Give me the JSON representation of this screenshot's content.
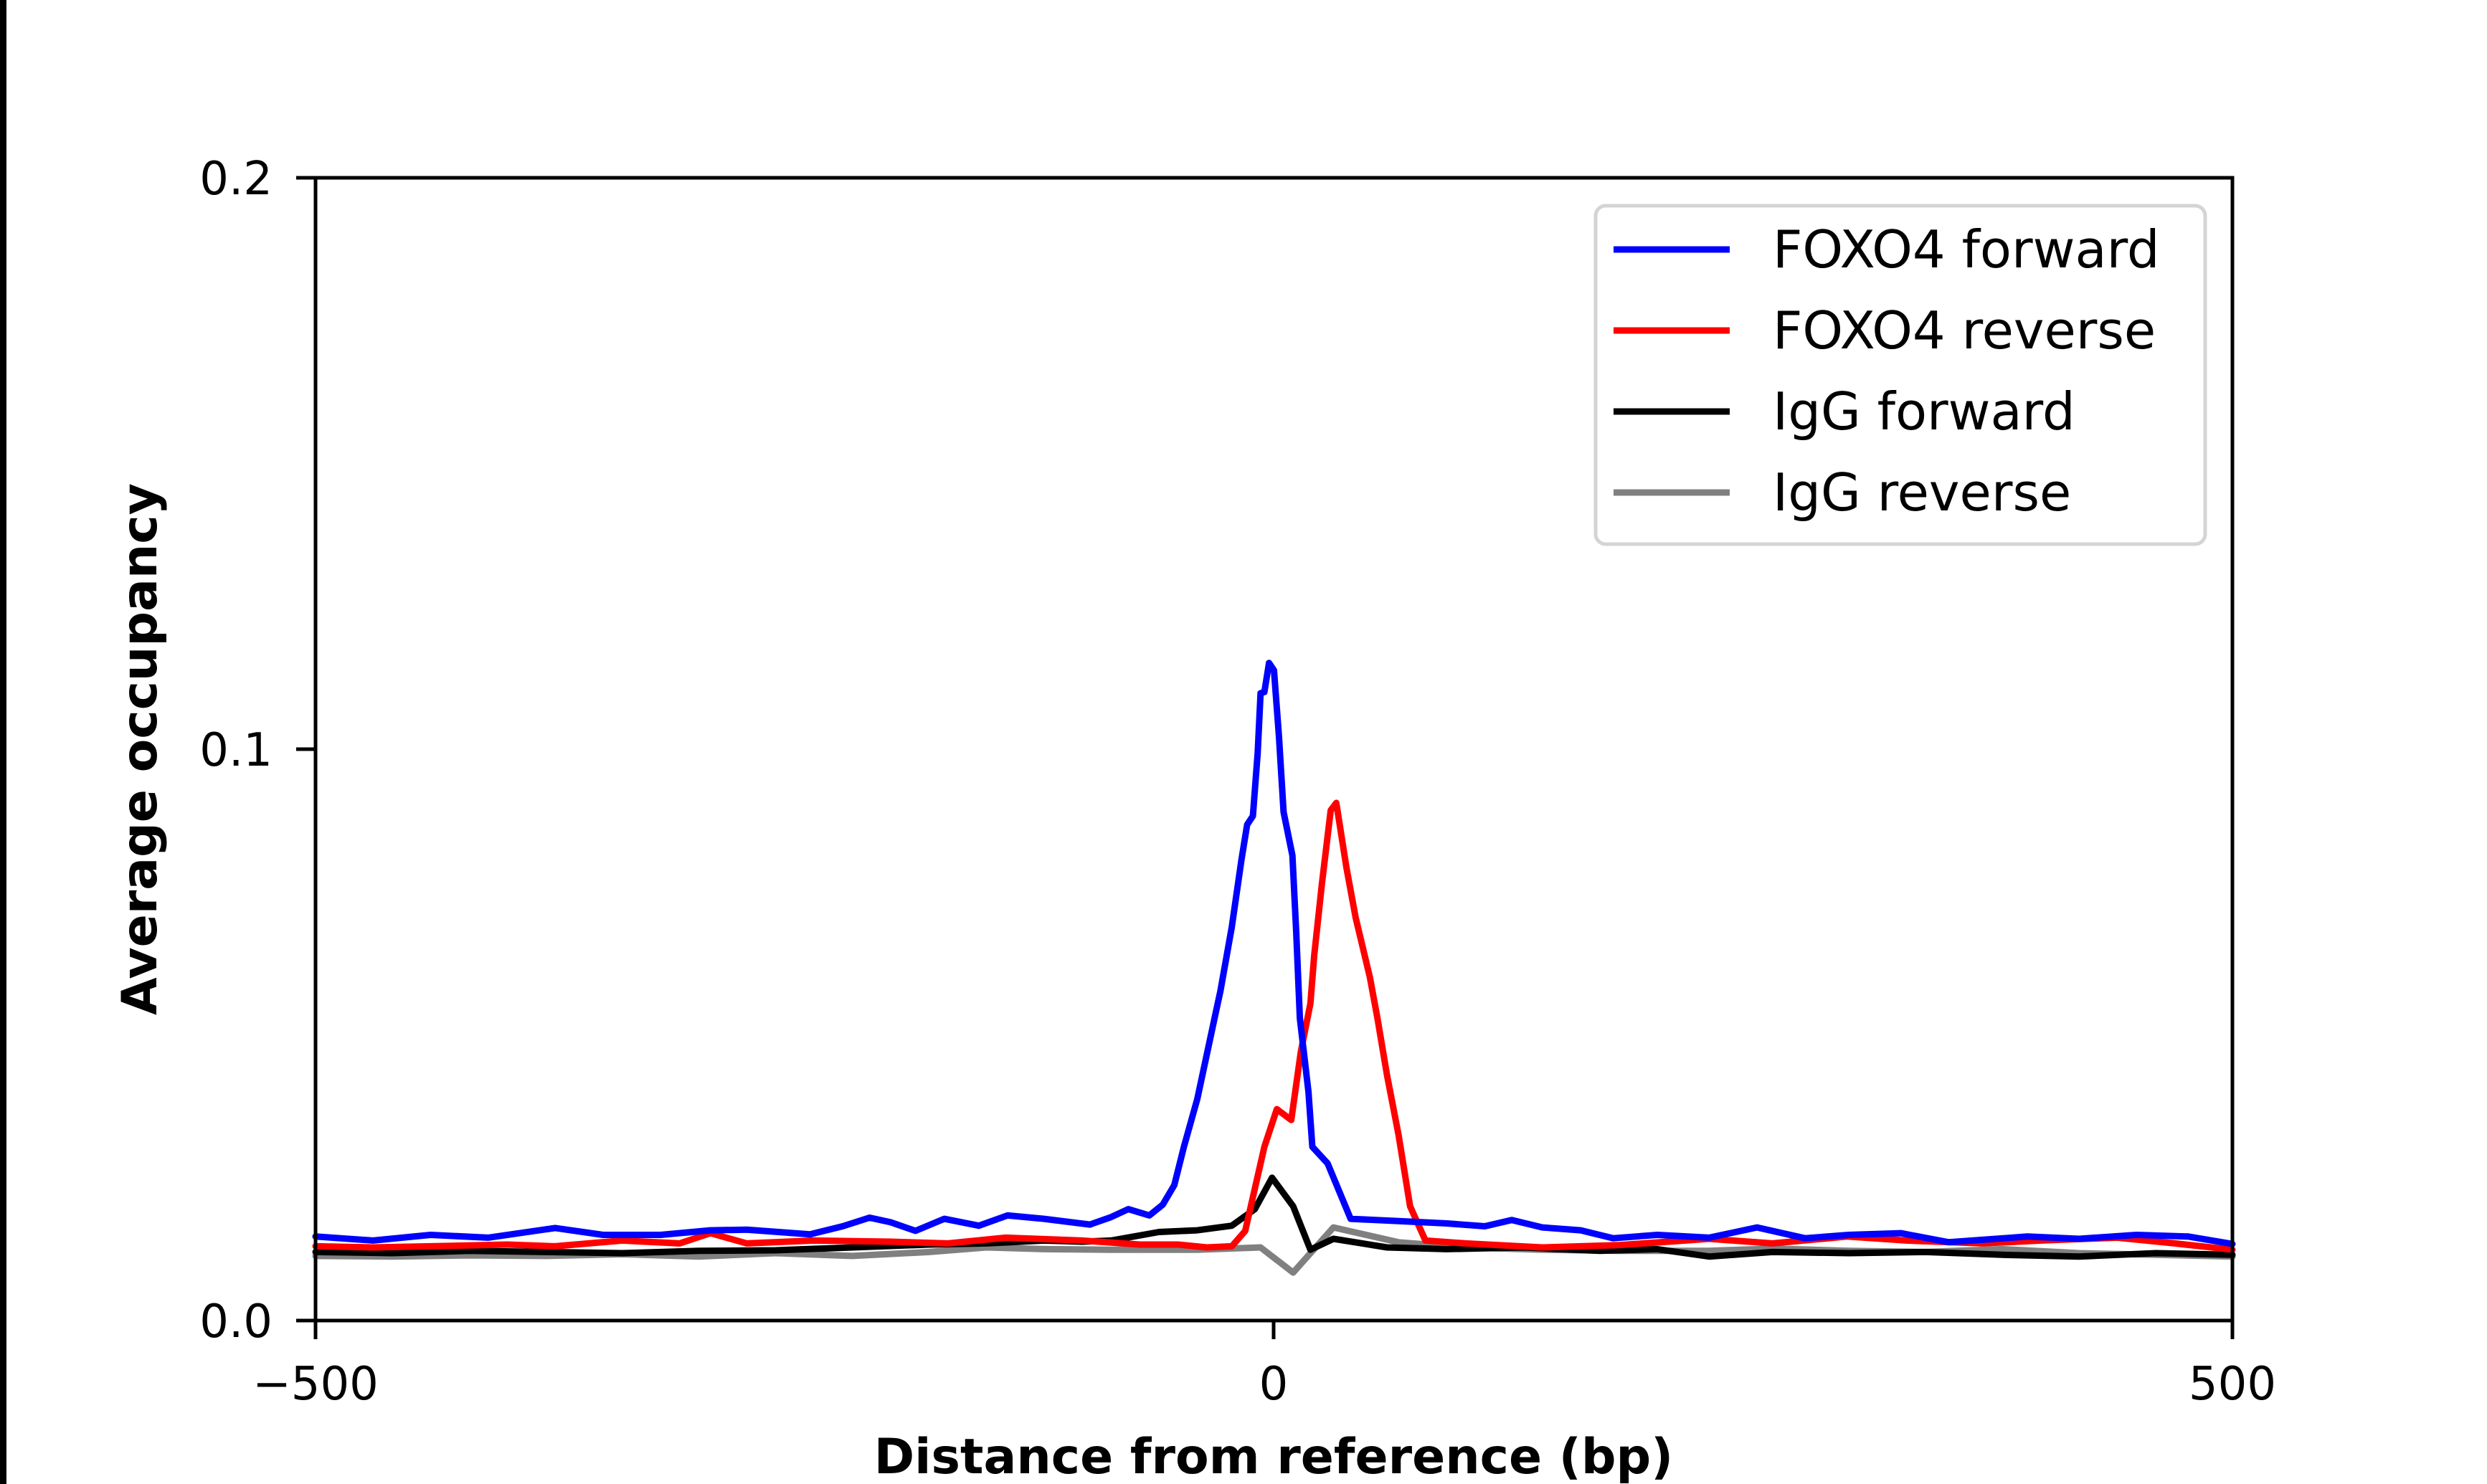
{
  "chart_data": {
    "type": "line",
    "title": "",
    "xlabel": "Distance from reference (bp)",
    "ylabel": "Average occupancy",
    "xlim": [
      -500,
      500
    ],
    "ylim": [
      0.0,
      0.2
    ],
    "xticks": [
      -500,
      0,
      500
    ],
    "xtick_labels": [
      "−500",
      "0",
      "500"
    ],
    "yticks": [
      0.0,
      0.1,
      0.2
    ],
    "ytick_labels": [
      "0.0",
      "0.1",
      "0.2"
    ],
    "grid": false,
    "legend_position": "upper right",
    "series": [
      {
        "name": "FOXO4 forward",
        "color": "#0000ff",
        "points": [
          [
            -500,
            0.0147
          ],
          [
            -470,
            0.014
          ],
          [
            -440,
            0.015
          ],
          [
            -410,
            0.0145
          ],
          [
            -375,
            0.0162
          ],
          [
            -350,
            0.015
          ],
          [
            -320,
            0.015
          ],
          [
            -294,
            0.0158
          ],
          [
            -275,
            0.0159
          ],
          [
            -242,
            0.0151
          ],
          [
            -225,
            0.0165
          ],
          [
            -211,
            0.018
          ],
          [
            -200,
            0.0172
          ],
          [
            -187,
            0.0157
          ],
          [
            -172,
            0.0178
          ],
          [
            -154,
            0.0166
          ],
          [
            -139,
            0.0184
          ],
          [
            -120,
            0.0178
          ],
          [
            -96,
            0.0168
          ],
          [
            -85,
            0.0181
          ],
          [
            -76,
            0.0195
          ],
          [
            -65,
            0.0184
          ],
          [
            -58,
            0.0203
          ],
          [
            -52,
            0.0237
          ],
          [
            -47,
            0.0304
          ],
          [
            -40,
            0.0388
          ],
          [
            -31,
            0.0529
          ],
          [
            -28,
            0.0576
          ],
          [
            -22,
            0.0689
          ],
          [
            -17,
            0.0806
          ],
          [
            -14,
            0.0868
          ],
          [
            -11,
            0.0883
          ],
          [
            -8.5,
            0.0994
          ],
          [
            -7,
            0.1098
          ],
          [
            -5,
            0.11
          ],
          [
            -2.6,
            0.1151
          ],
          [
            0,
            0.1138
          ],
          [
            2.6,
            0.1023
          ],
          [
            5,
            0.089
          ],
          [
            9.6,
            0.0814
          ],
          [
            11.6,
            0.068
          ],
          [
            13.5,
            0.0529
          ],
          [
            18,
            0.04
          ],
          [
            20,
            0.0304
          ],
          [
            28,
            0.0275
          ],
          [
            40,
            0.0178
          ],
          [
            65,
            0.0174
          ],
          [
            90,
            0.017
          ],
          [
            110,
            0.0165
          ],
          [
            124,
            0.0176
          ],
          [
            140,
            0.0163
          ],
          [
            160,
            0.0158
          ],
          [
            177,
            0.0144
          ],
          [
            200,
            0.015
          ],
          [
            227,
            0.0145
          ],
          [
            252,
            0.0163
          ],
          [
            277,
            0.0144
          ],
          [
            300,
            0.015
          ],
          [
            327,
            0.0153
          ],
          [
            352,
            0.0137
          ],
          [
            393,
            0.0147
          ],
          [
            420,
            0.0143
          ],
          [
            450,
            0.015
          ],
          [
            477,
            0.0147
          ],
          [
            500,
            0.0134
          ]
        ]
      },
      {
        "name": "FOXO4 reverse",
        "color": "#ff0000",
        "points": [
          [
            -500,
            0.013
          ],
          [
            -470,
            0.0128
          ],
          [
            -440,
            0.013
          ],
          [
            -400,
            0.0133
          ],
          [
            -375,
            0.013
          ],
          [
            -340,
            0.014
          ],
          [
            -310,
            0.0135
          ],
          [
            -294,
            0.0153
          ],
          [
            -275,
            0.0135
          ],
          [
            -240,
            0.014
          ],
          [
            -200,
            0.0138
          ],
          [
            -170,
            0.0135
          ],
          [
            -140,
            0.0145
          ],
          [
            -100,
            0.014
          ],
          [
            -70,
            0.0133
          ],
          [
            -50,
            0.0133
          ],
          [
            -35,
            0.0128
          ],
          [
            -22,
            0.013
          ],
          [
            -15,
            0.0157
          ],
          [
            -5,
            0.0304
          ],
          [
            1.5,
            0.037
          ],
          [
            9,
            0.0351
          ],
          [
            14,
            0.047
          ],
          [
            19,
            0.0555
          ],
          [
            21,
            0.0639
          ],
          [
            25,
            0.0764
          ],
          [
            29.6,
            0.0893
          ],
          [
            32.5,
            0.0906
          ],
          [
            37.8,
            0.0793
          ],
          [
            42.6,
            0.0705
          ],
          [
            50,
            0.0601
          ],
          [
            54,
            0.0529
          ],
          [
            59,
            0.0429
          ],
          [
            65,
            0.0325
          ],
          [
            71,
            0.02
          ],
          [
            79,
            0.014
          ],
          [
            100,
            0.0135
          ],
          [
            140,
            0.0128
          ],
          [
            180,
            0.0132
          ],
          [
            227,
            0.0143
          ],
          [
            260,
            0.0135
          ],
          [
            299,
            0.0147
          ],
          [
            330,
            0.014
          ],
          [
            370,
            0.0135
          ],
          [
            400,
            0.014
          ],
          [
            440,
            0.0145
          ],
          [
            470,
            0.0135
          ],
          [
            500,
            0.0124
          ]
        ]
      },
      {
        "name": "IgG forward",
        "color": "#000000",
        "points": [
          [
            -500,
            0.012
          ],
          [
            -460,
            0.0118
          ],
          [
            -420,
            0.0122
          ],
          [
            -380,
            0.012
          ],
          [
            -340,
            0.0118
          ],
          [
            -300,
            0.0122
          ],
          [
            -260,
            0.0123
          ],
          [
            -220,
            0.0128
          ],
          [
            -180,
            0.0133
          ],
          [
            -150,
            0.0135
          ],
          [
            -120,
            0.014
          ],
          [
            -100,
            0.0138
          ],
          [
            -85,
            0.014
          ],
          [
            -60,
            0.0155
          ],
          [
            -40,
            0.0158
          ],
          [
            -22,
            0.0166
          ],
          [
            -10,
            0.0195
          ],
          [
            -1,
            0.025
          ],
          [
            10,
            0.02
          ],
          [
            19,
            0.0124
          ],
          [
            31,
            0.0143
          ],
          [
            59,
            0.0128
          ],
          [
            90,
            0.0125
          ],
          [
            130,
            0.0128
          ],
          [
            170,
            0.0122
          ],
          [
            200,
            0.0125
          ],
          [
            227,
            0.0112
          ],
          [
            260,
            0.012
          ],
          [
            300,
            0.0118
          ],
          [
            340,
            0.012
          ],
          [
            380,
            0.0115
          ],
          [
            420,
            0.0112
          ],
          [
            460,
            0.0118
          ],
          [
            500,
            0.0115
          ]
        ]
      },
      {
        "name": "IgG reverse",
        "color": "#808080",
        "points": [
          [
            -500,
            0.0113
          ],
          [
            -460,
            0.0112
          ],
          [
            -420,
            0.0114
          ],
          [
            -380,
            0.0113
          ],
          [
            -340,
            0.0116
          ],
          [
            -300,
            0.0112
          ],
          [
            -260,
            0.0118
          ],
          [
            -220,
            0.0113
          ],
          [
            -180,
            0.012
          ],
          [
            -150,
            0.0128
          ],
          [
            -120,
            0.0125
          ],
          [
            -85,
            0.0124
          ],
          [
            -40,
            0.0124
          ],
          [
            -7,
            0.0128
          ],
          [
            10,
            0.0084
          ],
          [
            31,
            0.0163
          ],
          [
            65,
            0.0137
          ],
          [
            100,
            0.0128
          ],
          [
            140,
            0.0124
          ],
          [
            180,
            0.0122
          ],
          [
            227,
            0.0122
          ],
          [
            260,
            0.0126
          ],
          [
            300,
            0.0122
          ],
          [
            340,
            0.012
          ],
          [
            380,
            0.0125
          ],
          [
            420,
            0.0118
          ],
          [
            460,
            0.0115
          ],
          [
            500,
            0.0112
          ]
        ]
      }
    ]
  },
  "legend": {
    "items": [
      {
        "label": "FOXO4 forward",
        "color": "#0000ff"
      },
      {
        "label": "FOXO4 reverse",
        "color": "#ff0000"
      },
      {
        "label": "IgG forward",
        "color": "#000000"
      },
      {
        "label": "IgG reverse",
        "color": "#808080"
      }
    ]
  }
}
